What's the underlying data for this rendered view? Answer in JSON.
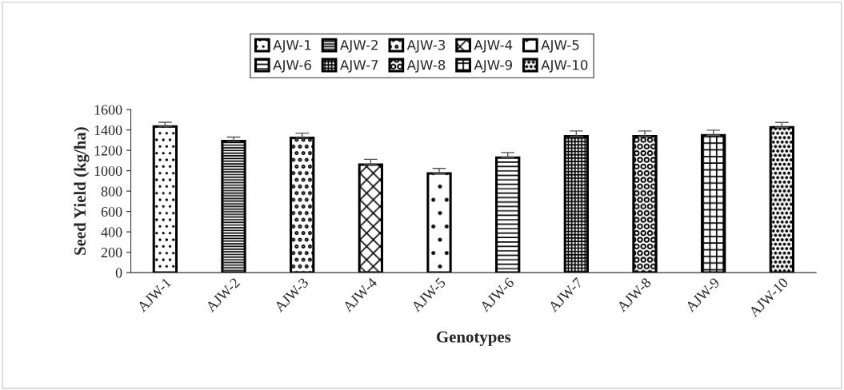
{
  "chart_data": {
    "type": "bar",
    "xlabel": "Genotypes",
    "ylabel": "Seed Yield (kg/ha)",
    "categories": [
      "AJW-1",
      "AJW-2",
      "AJW-3",
      "AJW-4",
      "AJW-5",
      "AJW-6",
      "AJW-7",
      "AJW-8",
      "AJW-9",
      "AJW-10"
    ],
    "series": [
      {
        "name": "AJW-1",
        "color": "#000000",
        "values": [
          1435,
          null,
          null,
          null,
          null,
          null,
          null,
          null,
          null,
          null
        ],
        "errors": [
          40,
          null,
          null,
          null,
          null,
          null,
          null,
          null,
          null,
          null
        ]
      },
      {
        "name": "AJW-2",
        "color": "#000000",
        "values": [
          null,
          1290,
          null,
          null,
          null,
          null,
          null,
          null,
          null,
          null
        ],
        "errors": [
          null,
          40,
          null,
          null,
          null,
          null,
          null,
          null,
          null,
          null
        ]
      },
      {
        "name": "AJW-3",
        "color": "#000000",
        "values": [
          null,
          null,
          1322,
          null,
          null,
          null,
          null,
          null,
          null,
          null
        ],
        "errors": [
          null,
          null,
          47,
          null,
          null,
          null,
          null,
          null,
          null,
          null
        ]
      },
      {
        "name": "AJW-4",
        "color": "#000000",
        "values": [
          null,
          null,
          null,
          1060,
          null,
          null,
          null,
          null,
          null,
          null
        ],
        "errors": [
          null,
          null,
          null,
          52,
          null,
          null,
          null,
          null,
          null,
          null
        ]
      },
      {
        "name": "AJW-5",
        "color": "#000000",
        "values": [
          null,
          null,
          null,
          null,
          973,
          null,
          null,
          null,
          null,
          null
        ],
        "errors": [
          null,
          null,
          null,
          null,
          50,
          null,
          null,
          null,
          null,
          null
        ]
      },
      {
        "name": "AJW-6",
        "color": "#000000",
        "values": [
          null,
          null,
          null,
          null,
          null,
          1128,
          null,
          null,
          null,
          null
        ],
        "errors": [
          null,
          null,
          null,
          null,
          null,
          50,
          null,
          null,
          null,
          null
        ]
      },
      {
        "name": "AJW-7",
        "color": "#000000",
        "values": [
          null,
          null,
          null,
          null,
          null,
          null,
          1338,
          null,
          null,
          null
        ],
        "errors": [
          null,
          null,
          null,
          null,
          null,
          null,
          52,
          null,
          null,
          null
        ]
      },
      {
        "name": "AJW-8",
        "color": "#000000",
        "values": [
          null,
          null,
          null,
          null,
          null,
          null,
          null,
          1338,
          null,
          null
        ],
        "errors": [
          null,
          null,
          null,
          null,
          null,
          null,
          null,
          52,
          null,
          null
        ]
      },
      {
        "name": "AJW-9",
        "color": "#000000",
        "values": [
          null,
          null,
          null,
          null,
          null,
          null,
          null,
          null,
          1348,
          null
        ],
        "errors": [
          null,
          null,
          null,
          null,
          null,
          null,
          null,
          null,
          50,
          null
        ]
      },
      {
        "name": "AJW-10",
        "color": "#000000",
        "values": [
          null,
          null,
          null,
          null,
          null,
          null,
          null,
          null,
          null,
          1427
        ],
        "errors": [
          null,
          null,
          null,
          null,
          null,
          null,
          null,
          null,
          null,
          47
        ]
      }
    ],
    "ylim": [
      0,
      1600
    ],
    "yticks": [
      0,
      200,
      400,
      600,
      800,
      1000,
      1200,
      1400,
      1600
    ],
    "grid": false,
    "legend": "top"
  }
}
